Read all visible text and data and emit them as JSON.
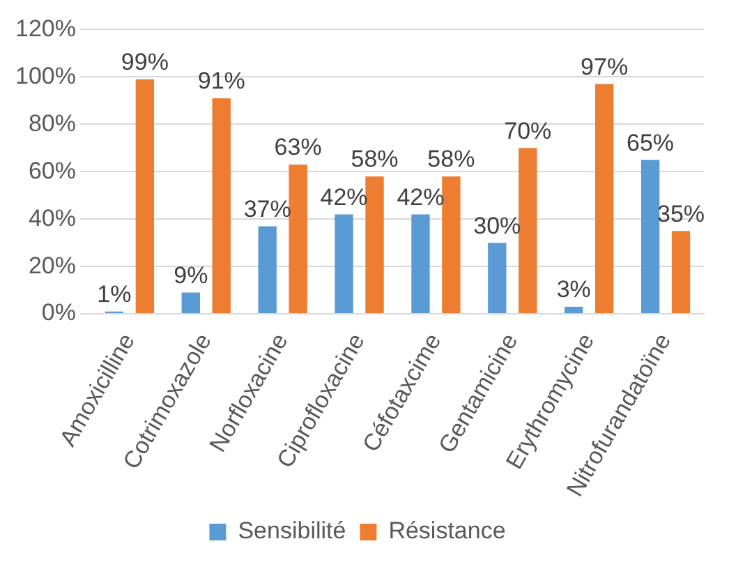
{
  "chart_data": {
    "type": "bar",
    "categories": [
      "Amoxicilline",
      "Cotrimoxazole",
      "Norfloxacine",
      "Ciprofloxacine",
      "Céfotaxcime",
      "Gentamicine",
      "Erythromycine",
      "Nitrofurandatoïne"
    ],
    "series": [
      {
        "name": "Sensibilité",
        "color": "#5b9bd5",
        "values": [
          1,
          9,
          37,
          42,
          42,
          30,
          3,
          65
        ],
        "value_labels": [
          "1%",
          "9%",
          "37%",
          "42%",
          "42%",
          "30%",
          "3%",
          "65%"
        ]
      },
      {
        "name": "Résistance",
        "color": "#ed7d31",
        "values": [
          99,
          91,
          63,
          58,
          58,
          70,
          97,
          35
        ],
        "value_labels": [
          "99%",
          "91%",
          "63%",
          "58%",
          "58%",
          "70%",
          "97%",
          "35%"
        ]
      }
    ],
    "ylim": [
      0,
      120
    ],
    "yticks": [
      {
        "value": 0,
        "label": "0%"
      },
      {
        "value": 20,
        "label": "20%"
      },
      {
        "value": 40,
        "label": "40%"
      },
      {
        "value": 60,
        "label": "60%"
      },
      {
        "value": 80,
        "label": "80%"
      },
      {
        "value": 100,
        "label": "100%"
      },
      {
        "value": 120,
        "label": "120%"
      }
    ],
    "grid": "y",
    "legend": "bottom"
  }
}
